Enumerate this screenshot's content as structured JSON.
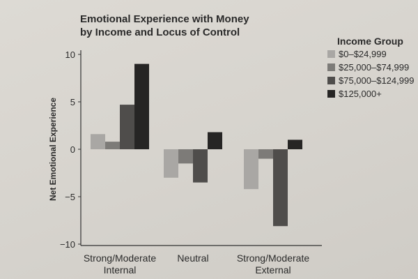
{
  "chart_data": {
    "type": "bar",
    "title_lines": [
      "Emotional Experience with Money",
      "by Income and Locus of Control"
    ],
    "ylabel": "Net Emotional Experience",
    "ylim": [
      -10,
      10
    ],
    "yticks": [
      10,
      5,
      0,
      -5,
      -10
    ],
    "ytick_labels": [
      "10",
      "5",
      "0",
      "−5",
      "−10"
    ],
    "categories": [
      [
        "Strong/Moderate",
        "Internal"
      ],
      [
        "Neutral"
      ],
      [
        "Strong/Moderate",
        "External"
      ]
    ],
    "legend_title": "Income Group",
    "series": [
      {
        "name": "$0–$24,999",
        "color": "#a9a7a4",
        "values": [
          1.6,
          -3.0,
          -4.2
        ]
      },
      {
        "name": "$25,000–$74,999",
        "color": "#7d7b78",
        "values": [
          0.8,
          -1.5,
          -1.0
        ]
      },
      {
        "name": "$75,000–$124,999",
        "color": "#4f4d4b",
        "values": [
          4.7,
          -3.5,
          -8.1
        ]
      },
      {
        "name": "$125,000+",
        "color": "#262524",
        "values": [
          9.0,
          1.8,
          1.0
        ]
      }
    ]
  }
}
